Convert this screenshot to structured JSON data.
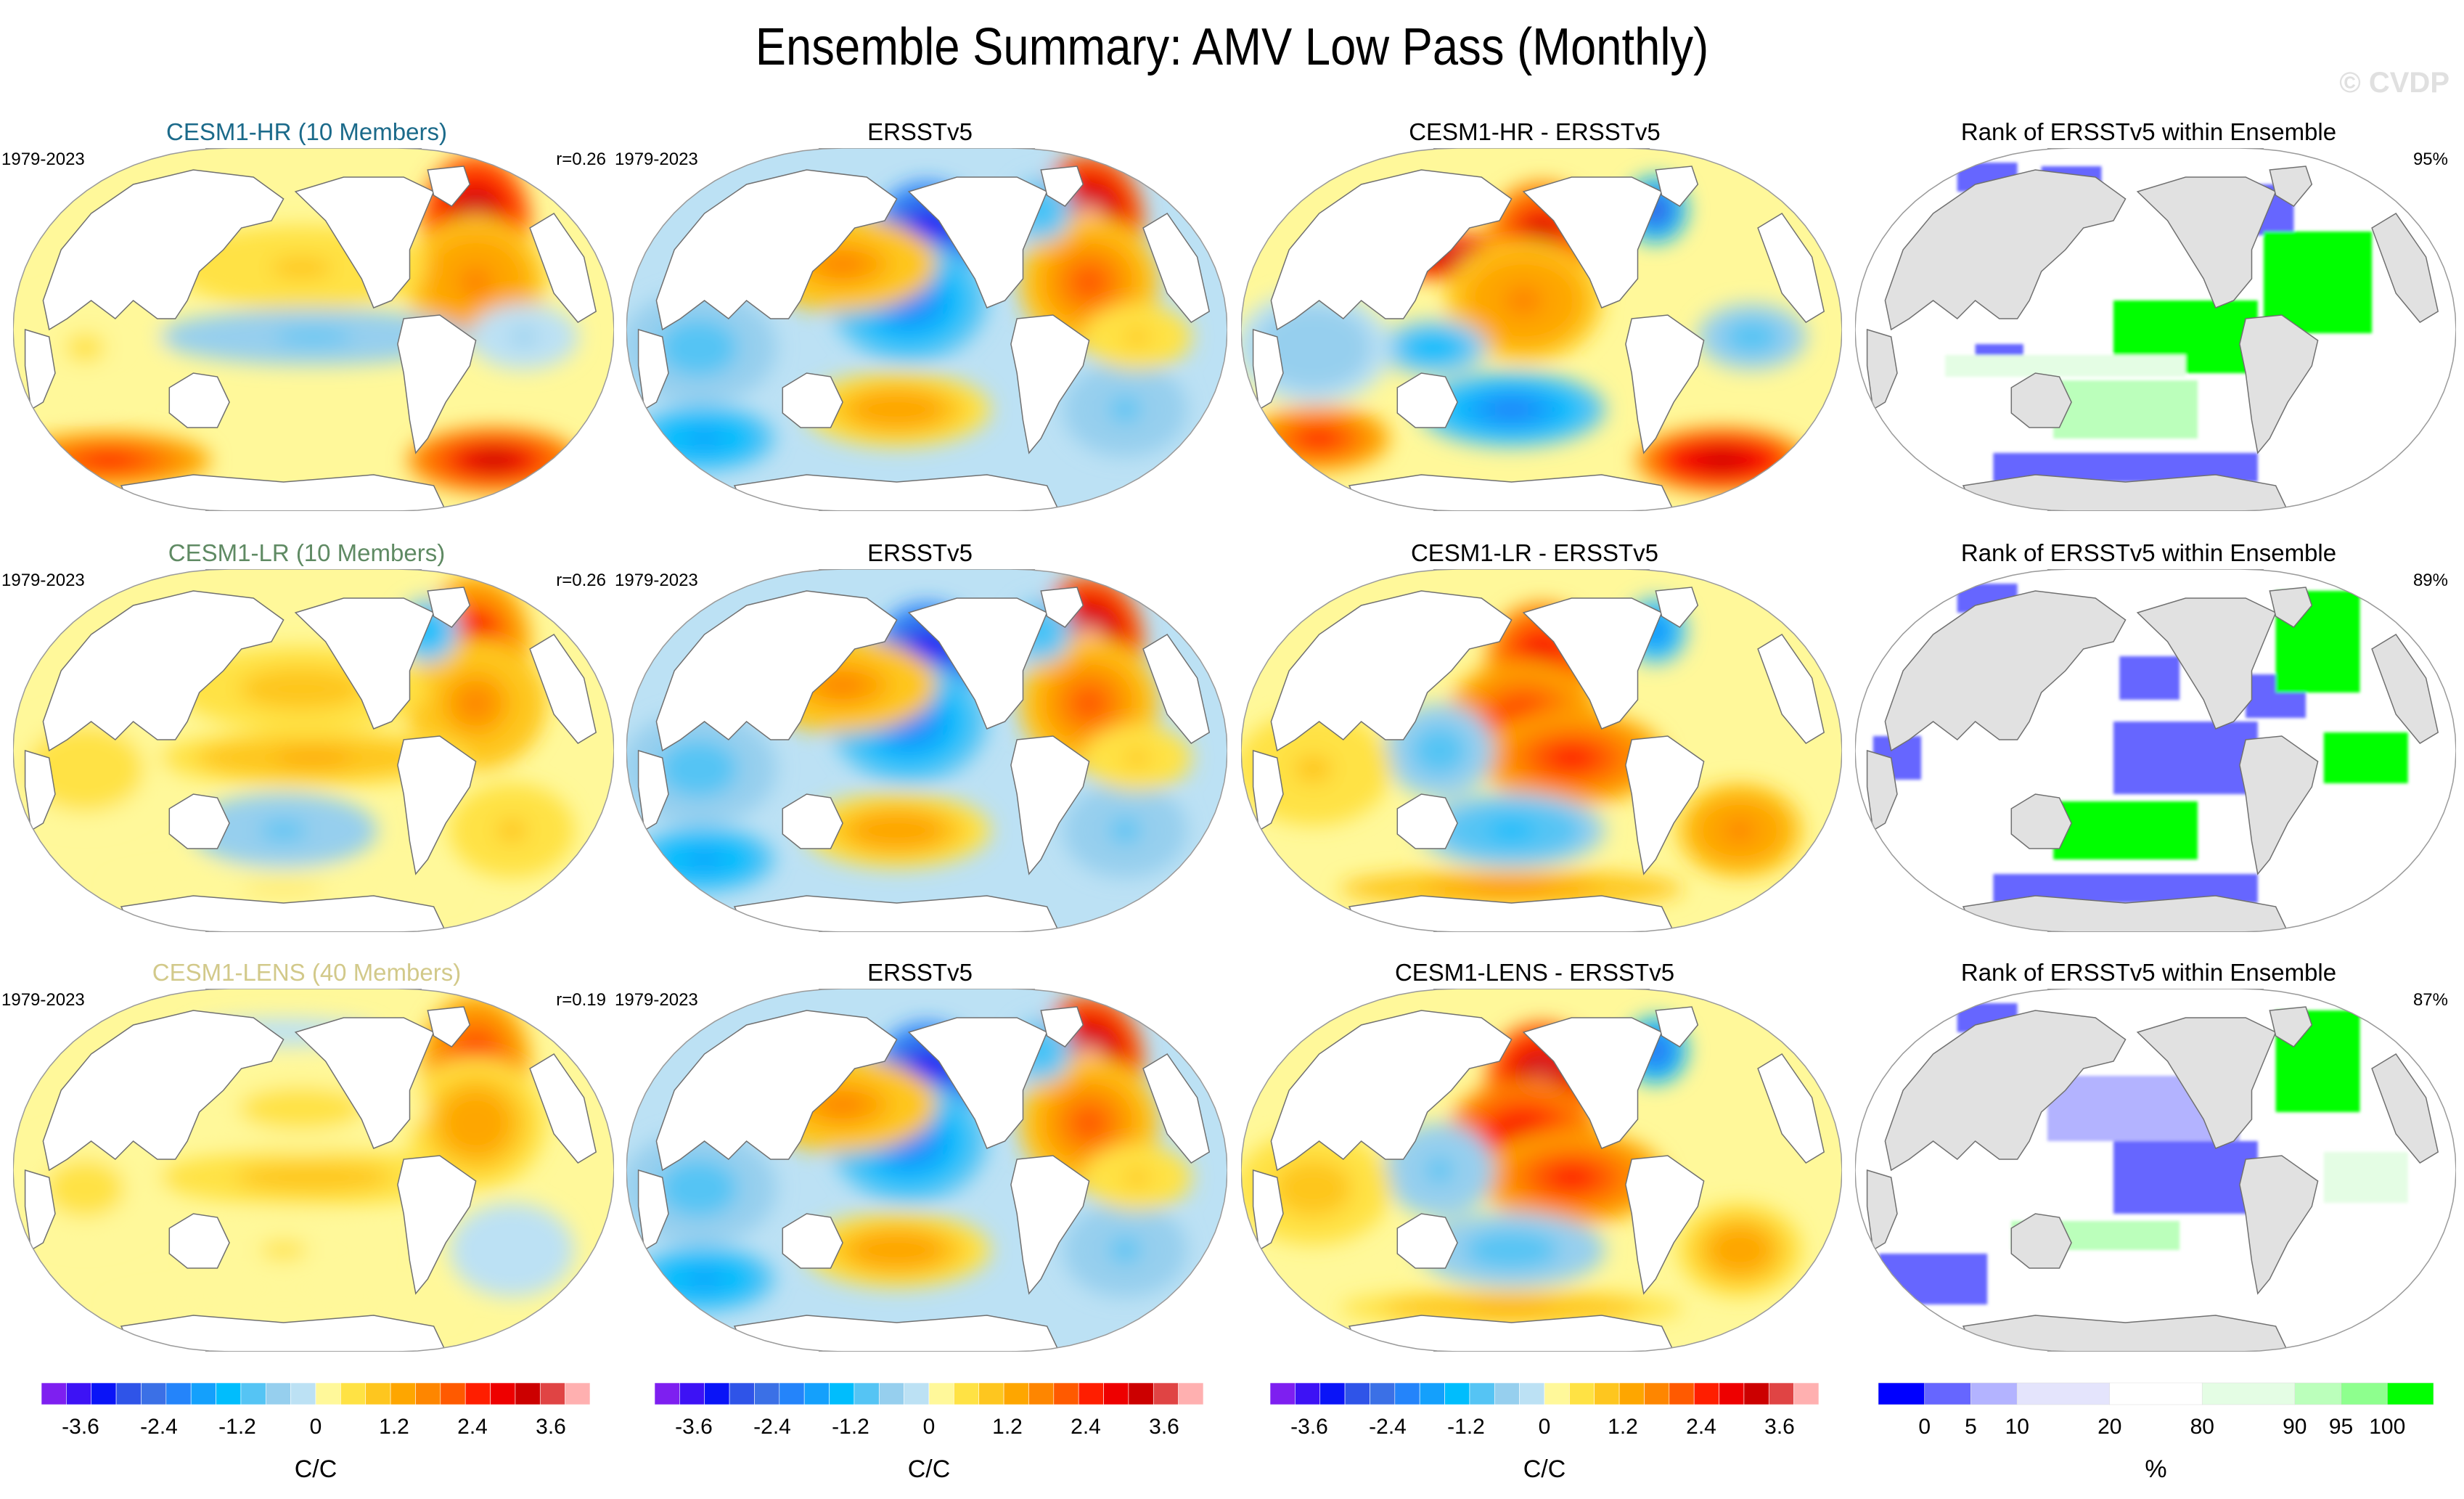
{
  "title": "Ensemble Summary: AMV Low Pass (Monthly)",
  "watermark": "© CVDP",
  "chart_data": {
    "type": "heatmap",
    "title": "Ensemble Summary: AMV Low Pass (Monthly)",
    "projection": "Robinson-like global map, Pacific-centered",
    "colorbars": [
      {
        "id": "anomaly",
        "unit": "C/C",
        "tick_labels": [
          "-3.6",
          "-2.4",
          "-1.2",
          "0",
          "1.2",
          "2.4",
          "3.6"
        ],
        "tick_values": [
          -3.6,
          -2.4,
          -1.2,
          0,
          1.2,
          2.4,
          3.6
        ],
        "range": [
          -4.2,
          4.2
        ],
        "colors": [
          "#7e1ff0",
          "#3d12f5",
          "#0a14f7",
          "#2f54e8",
          "#3b70e6",
          "#2484fa",
          "#14a0fc",
          "#00bdfd",
          "#55c4f4",
          "#96cfee",
          "#bce1f4",
          "#fff89a",
          "#ffe244",
          "#fec61f",
          "#fea600",
          "#fe8600",
          "#ff5a00",
          "#ff1e00",
          "#ee0000",
          "#cc0000",
          "#e04444",
          "#ffb0b0"
        ]
      },
      {
        "id": "rank",
        "unit": "%",
        "tick_labels": [
          "0",
          "5",
          "10",
          "20",
          "80",
          "90",
          "95",
          "100"
        ],
        "bins": [
          [
            -5,
            0
          ],
          [
            0,
            5
          ],
          [
            5,
            10
          ],
          [
            10,
            20
          ],
          [
            20,
            80
          ],
          [
            80,
            90
          ],
          [
            90,
            95
          ],
          [
            95,
            100
          ],
          [
            100,
            105
          ]
        ],
        "colors": [
          "#0000ff",
          "#6666ff",
          "#b3b3ff",
          "#e4e4fc",
          "#ffffff",
          "#e4fde4",
          "#bbffbb",
          "#8eff8e",
          "#00ff00"
        ]
      }
    ],
    "rows": [
      {
        "model": "CESM1-HR (10 Members)",
        "model_color": "#1b6a8a",
        "period": "1979-2023",
        "pattern_correlation": "r=0.26",
        "diff_title": "CESM1-HR - ERSSTv5",
        "rank_title": "Rank of ERSSTv5 within Ensemble",
        "rank_percent": "95%",
        "model_features": [
          {
            "region": "Kuroshio extension",
            "value": 3.6
          },
          {
            "region": "Subpolar N. Atlantic",
            "value": 3.8
          },
          {
            "region": "N. Atlantic subtropics",
            "value": 1.8
          },
          {
            "region": "N. Pacific",
            "value": 0.8
          },
          {
            "region": "Tropical Pacific",
            "value": -0.8
          },
          {
            "region": "Southern Ocean Indian sector",
            "value": 2.6
          },
          {
            "region": "South Atlantic / S. Ocean",
            "value": 3.2
          },
          {
            "region": "Indian Ocean",
            "value": 0.4
          },
          {
            "region": "Tropical Atlantic",
            "value": -0.4
          }
        ],
        "diff_features": [
          {
            "region": "Kuroshio extension",
            "value": 3.8
          },
          {
            "region": "NE Pacific / Gulf of Alaska",
            "value": 3.2
          },
          {
            "region": "Central N. Pacific",
            "value": 1.8
          },
          {
            "region": "Labrador Sea",
            "value": -2.8
          },
          {
            "region": "Western tropical Pacific",
            "value": -1.4
          },
          {
            "region": "South Pacific",
            "value": -2.0
          },
          {
            "region": "Tropical Atlantic",
            "value": -1.0
          },
          {
            "region": "South Atlantic / S. Ocean",
            "value": 3.4
          },
          {
            "region": "Southern Indian Ocean",
            "value": 2.4
          },
          {
            "region": "Indian Ocean",
            "value": -0.6
          }
        ],
        "rank_features": [
          {
            "region": "N. Pacific high lat",
            "rank": 0
          },
          {
            "region": "Barents Sea",
            "rank": 0
          },
          {
            "region": "Labrador Sea",
            "rank": 0
          },
          {
            "region": "N. Atlantic subtropics",
            "rank": 100
          },
          {
            "region": "Eastern tropical Pacific",
            "rank": 100
          },
          {
            "region": "Maritime continent",
            "rank": 0
          },
          {
            "region": "Southern Ocean",
            "rank": 0
          },
          {
            "region": "South Pacific",
            "rank": 92
          },
          {
            "region": "Tropical band",
            "rank": 85
          }
        ]
      },
      {
        "model": "CESM1-LR (10 Members)",
        "model_color": "#5f8a63",
        "period": "1979-2023",
        "pattern_correlation": "r=0.26",
        "diff_title": "CESM1-LR - ERSSTv5",
        "rank_title": "Rank of ERSSTv5 within Ensemble",
        "rank_percent": "89%",
        "model_features": [
          {
            "region": "Subpolar N. Atlantic",
            "value": 2.8
          },
          {
            "region": "N. Atlantic subtropics",
            "value": 1.6
          },
          {
            "region": "N. Pacific",
            "value": 1.0
          },
          {
            "region": "Tropical Pacific",
            "value": 1.2
          },
          {
            "region": "Indian Ocean",
            "value": 0.6
          },
          {
            "region": "South Pacific",
            "value": -0.8
          },
          {
            "region": "South Atlantic",
            "value": 0.8
          },
          {
            "region": "Southern Ocean",
            "value": 0.4
          },
          {
            "region": "Labrador Sea",
            "value": -1.4
          }
        ],
        "diff_features": [
          {
            "region": "NE Pacific / Gulf of Alaska",
            "value": 3.0
          },
          {
            "region": "Central N. Pacific",
            "value": 2.6
          },
          {
            "region": "Eastern tropical Pacific",
            "value": 2.4
          },
          {
            "region": "Labrador Sea",
            "value": -2.2
          },
          {
            "region": "Western Pacific",
            "value": -1.0
          },
          {
            "region": "South Pacific",
            "value": -1.2
          },
          {
            "region": "South Atlantic",
            "value": 1.8
          },
          {
            "region": "Indian Ocean",
            "value": 0.8
          },
          {
            "region": "Southern Ocean",
            "value": 1.6
          }
        ],
        "rank_features": [
          {
            "region": "Eastern tropical Pacific",
            "rank": 0
          },
          {
            "region": "NE Pacific",
            "rank": 0
          },
          {
            "region": "Gulf Stream",
            "rank": 0
          },
          {
            "region": "Barents Sea",
            "rank": 0
          },
          {
            "region": "Subpolar N. Atlantic",
            "rank": 100
          },
          {
            "region": "South Pacific",
            "rank": 100
          },
          {
            "region": "Southern Ocean",
            "rank": 0
          },
          {
            "region": "Arabian Sea",
            "rank": 0
          },
          {
            "region": "Tropical Atlantic",
            "rank": 100
          }
        ]
      },
      {
        "model": "CESM1-LENS (40 Members)",
        "model_color": "#d2c98a",
        "period": "1979-2023",
        "pattern_correlation": "r=0.19",
        "diff_title": "CESM1-LENS - ERSSTv5",
        "rank_title": "Rank of ERSSTv5 within Ensemble",
        "rank_percent": "87%",
        "model_features": [
          {
            "region": "Subpolar N. Atlantic",
            "value": 2.6
          },
          {
            "region": "N. Atlantic subtropics",
            "value": 1.4
          },
          {
            "region": "Tropical Pacific",
            "value": 1.0
          },
          {
            "region": "N. Pacific",
            "value": 0.5
          },
          {
            "region": "Indian Ocean",
            "value": 0.5
          },
          {
            "region": "South Pacific",
            "value": 0.4
          },
          {
            "region": "Southern Ocean",
            "value": 0.3
          },
          {
            "region": "Arctic",
            "value": -0.3
          },
          {
            "region": "South Atlantic",
            "value": -0.2
          }
        ],
        "diff_features": [
          {
            "region": "NE Pacific / Gulf of Alaska",
            "value": 3.8
          },
          {
            "region": "Central N. Pacific",
            "value": 3.0
          },
          {
            "region": "Eastern tropical Pacific",
            "value": 2.6
          },
          {
            "region": "Labrador Sea",
            "value": -2.6
          },
          {
            "region": "Western Pacific",
            "value": -0.8
          },
          {
            "region": "South Pacific",
            "value": -1.0
          },
          {
            "region": "South Atlantic",
            "value": 1.4
          },
          {
            "region": "Indian Ocean",
            "value": 1.0
          },
          {
            "region": "Southern Ocean",
            "value": 1.2
          }
        ],
        "rank_features": [
          {
            "region": "Eastern tropical Pacific",
            "rank": 0
          },
          {
            "region": "N. Pacific",
            "rank": 8
          },
          {
            "region": "Barents Sea",
            "rank": 0
          },
          {
            "region": "Subpolar N. Atlantic",
            "rank": 100
          },
          {
            "region": "South Pacific band",
            "rank": 92
          },
          {
            "region": "Southern Indian Ocean",
            "rank": 3
          },
          {
            "region": "Tropical Atlantic",
            "rank": 85
          }
        ]
      }
    ],
    "obs": {
      "title": "ERSSTv5",
      "period": "1979-2023",
      "features": [
        {
          "region": "NE Pacific / Gulf of Alaska",
          "value": -3.8
        },
        {
          "region": "Central N. Pacific",
          "value": -2.2
        },
        {
          "region": "Kuroshio region",
          "value": 1.6
        },
        {
          "region": "Subpolar N. Atlantic",
          "value": 4.0
        },
        {
          "region": "N. Atlantic subtropics",
          "value": 2.0
        },
        {
          "region": "Labrador Sea",
          "value": -1.2
        },
        {
          "region": "South Pacific",
          "value": 1.4
        },
        {
          "region": "Indian Ocean",
          "value": -1.0
        },
        {
          "region": "Southern Indian Ocean",
          "value": -1.8
        },
        {
          "region": "South Atlantic",
          "value": -0.8
        },
        {
          "region": "Tropical Atlantic",
          "value": 0.8
        }
      ]
    }
  }
}
